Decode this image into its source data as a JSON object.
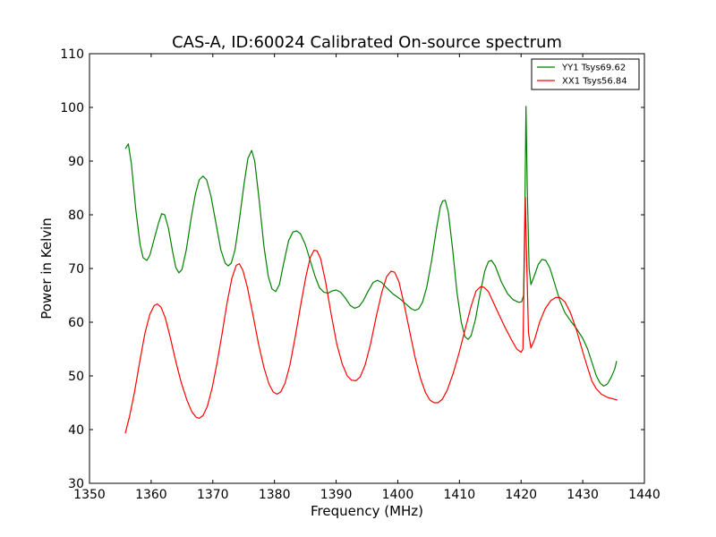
{
  "chart_data": {
    "type": "line",
    "title": "CAS-A, ID:60024 Calibrated On-source spectrum",
    "xlabel": "Frequency (MHz)",
    "ylabel": "Power in Kelvin",
    "xlim": [
      1350,
      1440
    ],
    "ylim": [
      30,
      110
    ],
    "xticks": [
      1350,
      1360,
      1370,
      1380,
      1390,
      1400,
      1410,
      1420,
      1430,
      1440
    ],
    "yticks": [
      30,
      40,
      50,
      60,
      70,
      80,
      90,
      100,
      110
    ],
    "grid": false,
    "legend_position": "top-right",
    "series": [
      {
        "name": "YY1 Tsys69.62",
        "color": "#008000",
        "points": [
          [
            1355.8,
            92.3
          ],
          [
            1356.3,
            93.2
          ],
          [
            1356.8,
            89.5
          ],
          [
            1357.5,
            81.0
          ],
          [
            1358.2,
            74.5
          ],
          [
            1358.7,
            72.0
          ],
          [
            1359.3,
            71.5
          ],
          [
            1359.8,
            72.5
          ],
          [
            1360.5,
            75.5
          ],
          [
            1361.2,
            78.5
          ],
          [
            1361.7,
            80.2
          ],
          [
            1362.2,
            80.0
          ],
          [
            1362.8,
            77.5
          ],
          [
            1363.5,
            73.0
          ],
          [
            1364.0,
            70.2
          ],
          [
            1364.5,
            69.2
          ],
          [
            1365.0,
            69.8
          ],
          [
            1365.7,
            73.5
          ],
          [
            1366.5,
            79.5
          ],
          [
            1367.2,
            84.0
          ],
          [
            1367.8,
            86.5
          ],
          [
            1368.4,
            87.2
          ],
          [
            1369.0,
            86.5
          ],
          [
            1369.7,
            83.5
          ],
          [
            1370.5,
            78.5
          ],
          [
            1371.3,
            73.5
          ],
          [
            1372.0,
            71.0
          ],
          [
            1372.5,
            70.5
          ],
          [
            1373.0,
            71.0
          ],
          [
            1373.6,
            73.5
          ],
          [
            1374.3,
            79.0
          ],
          [
            1375.1,
            86.0
          ],
          [
            1375.7,
            90.5
          ],
          [
            1376.3,
            92.0
          ],
          [
            1376.8,
            90.0
          ],
          [
            1377.5,
            83.0
          ],
          [
            1378.3,
            74.0
          ],
          [
            1379.0,
            68.5
          ],
          [
            1379.6,
            66.2
          ],
          [
            1380.2,
            65.7
          ],
          [
            1380.8,
            67.0
          ],
          [
            1381.5,
            71.0
          ],
          [
            1382.3,
            75.2
          ],
          [
            1383.0,
            76.8
          ],
          [
            1383.6,
            77.0
          ],
          [
            1384.2,
            76.5
          ],
          [
            1385.0,
            74.5
          ],
          [
            1385.8,
            71.5
          ],
          [
            1386.6,
            68.5
          ],
          [
            1387.3,
            66.4
          ],
          [
            1388.0,
            65.6
          ],
          [
            1388.7,
            65.4
          ],
          [
            1389.3,
            65.8
          ],
          [
            1390.0,
            66.0
          ],
          [
            1390.7,
            65.6
          ],
          [
            1391.5,
            64.5
          ],
          [
            1392.3,
            63.1
          ],
          [
            1393.0,
            62.6
          ],
          [
            1393.7,
            62.9
          ],
          [
            1394.4,
            64.0
          ],
          [
            1395.2,
            65.8
          ],
          [
            1396.0,
            67.4
          ],
          [
            1396.7,
            67.8
          ],
          [
            1397.4,
            67.4
          ],
          [
            1398.2,
            66.4
          ],
          [
            1399.2,
            65.3
          ],
          [
            1400.3,
            64.4
          ],
          [
            1401.3,
            63.4
          ],
          [
            1402.2,
            62.5
          ],
          [
            1402.8,
            62.2
          ],
          [
            1403.4,
            62.5
          ],
          [
            1404.0,
            63.7
          ],
          [
            1404.7,
            66.5
          ],
          [
            1405.5,
            71.5
          ],
          [
            1406.3,
            77.5
          ],
          [
            1406.9,
            81.5
          ],
          [
            1407.3,
            82.6
          ],
          [
            1407.7,
            82.7
          ],
          [
            1408.2,
            80.5
          ],
          [
            1408.9,
            73.5
          ],
          [
            1409.6,
            65.5
          ],
          [
            1410.3,
            60.0
          ],
          [
            1410.9,
            57.3
          ],
          [
            1411.4,
            56.8
          ],
          [
            1411.9,
            57.5
          ],
          [
            1412.6,
            60.5
          ],
          [
            1413.3,
            65.0
          ],
          [
            1414.1,
            69.5
          ],
          [
            1414.7,
            71.3
          ],
          [
            1415.2,
            71.5
          ],
          [
            1415.8,
            70.5
          ],
          [
            1416.8,
            67.5
          ],
          [
            1417.8,
            65.3
          ],
          [
            1418.7,
            64.2
          ],
          [
            1419.6,
            63.7
          ],
          [
            1420.1,
            63.8
          ],
          [
            1420.4,
            65.0
          ],
          [
            1420.6,
            80.0
          ],
          [
            1420.8,
            100.2
          ],
          [
            1421.0,
            85.0
          ],
          [
            1421.3,
            70.0
          ],
          [
            1421.6,
            67.0
          ],
          [
            1422.1,
            68.5
          ],
          [
            1422.8,
            70.8
          ],
          [
            1423.4,
            71.7
          ],
          [
            1424.0,
            71.5
          ],
          [
            1424.7,
            70.0
          ],
          [
            1425.5,
            67.0
          ],
          [
            1426.3,
            64.0
          ],
          [
            1427.1,
            61.8
          ],
          [
            1428.0,
            60.3
          ],
          [
            1429.0,
            58.8
          ],
          [
            1430.0,
            57.0
          ],
          [
            1430.8,
            55.0
          ],
          [
            1431.5,
            52.5
          ],
          [
            1432.2,
            50.0
          ],
          [
            1432.8,
            48.7
          ],
          [
            1433.4,
            48.1
          ],
          [
            1434.0,
            48.5
          ],
          [
            1434.6,
            49.7
          ],
          [
            1435.2,
            51.3
          ],
          [
            1435.5,
            52.8
          ]
        ]
      },
      {
        "name": "XX1 Tsys56.84",
        "color": "#ff0000",
        "points": [
          [
            1355.8,
            39.3
          ],
          [
            1356.5,
            42.5
          ],
          [
            1357.3,
            47.0
          ],
          [
            1358.2,
            53.0
          ],
          [
            1359.0,
            58.0
          ],
          [
            1359.8,
            61.5
          ],
          [
            1360.5,
            63.1
          ],
          [
            1361.0,
            63.4
          ],
          [
            1361.6,
            62.8
          ],
          [
            1362.3,
            60.8
          ],
          [
            1363.1,
            57.2
          ],
          [
            1364.0,
            52.7
          ],
          [
            1364.9,
            48.7
          ],
          [
            1365.8,
            45.5
          ],
          [
            1366.6,
            43.3
          ],
          [
            1367.3,
            42.3
          ],
          [
            1367.8,
            42.1
          ],
          [
            1368.4,
            42.6
          ],
          [
            1369.1,
            44.3
          ],
          [
            1369.9,
            47.8
          ],
          [
            1370.7,
            52.5
          ],
          [
            1371.5,
            57.8
          ],
          [
            1372.3,
            63.5
          ],
          [
            1373.1,
            68.2
          ],
          [
            1373.8,
            70.6
          ],
          [
            1374.3,
            70.9
          ],
          [
            1374.9,
            69.6
          ],
          [
            1375.6,
            66.5
          ],
          [
            1376.5,
            61.4
          ],
          [
            1377.4,
            56.0
          ],
          [
            1378.3,
            51.5
          ],
          [
            1379.1,
            48.5
          ],
          [
            1379.8,
            47.0
          ],
          [
            1380.4,
            46.6
          ],
          [
            1381.0,
            47.0
          ],
          [
            1381.7,
            48.6
          ],
          [
            1382.5,
            52.0
          ],
          [
            1383.4,
            57.5
          ],
          [
            1384.3,
            63.5
          ],
          [
            1385.1,
            68.5
          ],
          [
            1385.8,
            72.0
          ],
          [
            1386.4,
            73.4
          ],
          [
            1386.9,
            73.3
          ],
          [
            1387.5,
            71.8
          ],
          [
            1388.3,
            67.5
          ],
          [
            1389.2,
            61.5
          ],
          [
            1390.1,
            56.0
          ],
          [
            1391.0,
            52.2
          ],
          [
            1391.8,
            50.0
          ],
          [
            1392.5,
            49.2
          ],
          [
            1393.2,
            49.1
          ],
          [
            1393.9,
            49.8
          ],
          [
            1394.7,
            52.0
          ],
          [
            1395.6,
            56.0
          ],
          [
            1396.5,
            61.0
          ],
          [
            1397.4,
            65.5
          ],
          [
            1398.2,
            68.5
          ],
          [
            1398.9,
            69.5
          ],
          [
            1399.5,
            69.3
          ],
          [
            1400.2,
            67.5
          ],
          [
            1401.0,
            63.5
          ],
          [
            1401.9,
            58.5
          ],
          [
            1402.8,
            53.5
          ],
          [
            1403.7,
            49.5
          ],
          [
            1404.5,
            46.9
          ],
          [
            1405.2,
            45.5
          ],
          [
            1405.9,
            45.0
          ],
          [
            1406.5,
            45.0
          ],
          [
            1407.2,
            45.6
          ],
          [
            1408.0,
            47.3
          ],
          [
            1409.0,
            50.5
          ],
          [
            1410.0,
            54.5
          ],
          [
            1411.0,
            59.0
          ],
          [
            1411.9,
            63.0
          ],
          [
            1412.7,
            65.8
          ],
          [
            1413.4,
            66.6
          ],
          [
            1414.0,
            66.5
          ],
          [
            1414.7,
            65.7
          ],
          [
            1415.5,
            63.7
          ],
          [
            1416.5,
            61.2
          ],
          [
            1417.5,
            58.8
          ],
          [
            1418.5,
            56.6
          ],
          [
            1419.3,
            55.0
          ],
          [
            1420.0,
            54.4
          ],
          [
            1420.3,
            55.0
          ],
          [
            1420.5,
            70.0
          ],
          [
            1420.7,
            83.2
          ],
          [
            1420.9,
            72.0
          ],
          [
            1421.2,
            58.0
          ],
          [
            1421.6,
            55.2
          ],
          [
            1422.2,
            56.8
          ],
          [
            1423.0,
            60.0
          ],
          [
            1423.9,
            62.5
          ],
          [
            1424.8,
            64.0
          ],
          [
            1425.6,
            64.6
          ],
          [
            1426.3,
            64.6
          ],
          [
            1427.1,
            63.8
          ],
          [
            1428.0,
            61.8
          ],
          [
            1429.0,
            58.5
          ],
          [
            1430.0,
            54.5
          ],
          [
            1430.8,
            51.5
          ],
          [
            1431.5,
            49.0
          ],
          [
            1432.2,
            47.6
          ],
          [
            1433.0,
            46.6
          ],
          [
            1434.0,
            46.0
          ],
          [
            1435.0,
            45.7
          ],
          [
            1435.6,
            45.5
          ]
        ]
      }
    ]
  }
}
